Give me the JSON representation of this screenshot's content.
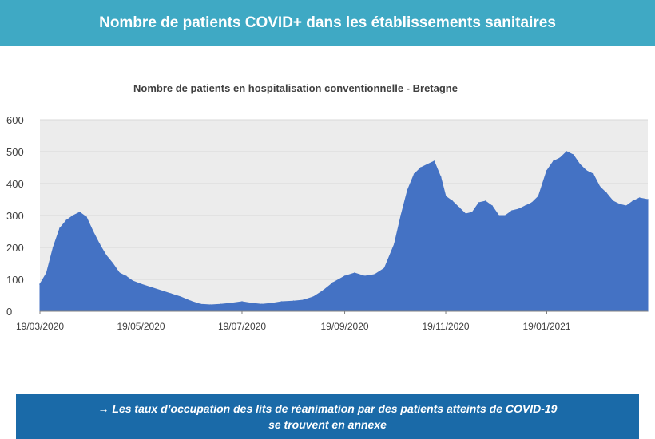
{
  "header": {
    "title": "Nombre de patients COVID+ dans les établissements sanitaires"
  },
  "footer": {
    "line1": "→ Les taux d’occupation des lits de réanimation par des patients atteints de COVID-19",
    "line2": "se trouvent en annexe"
  },
  "colors": {
    "banner": "#3fa9c4",
    "footer": "#1a6aa8",
    "area": "#4472c4",
    "plot_bg": "#ececec",
    "grid": "#d9d9d9"
  },
  "chart_data": {
    "type": "area",
    "title": "Nombre de patients en hospitalisation conventionnelle - Bretagne",
    "xlabel": "",
    "ylabel": "",
    "ylim": [
      0,
      600
    ],
    "yticks": [
      "0",
      "100",
      "200",
      "300",
      "400",
      "500",
      "600"
    ],
    "xticks": [
      "19/03/2020",
      "19/05/2020",
      "19/07/2020",
      "19/09/2020",
      "19/11/2020",
      "19/01/2021"
    ],
    "grid": true,
    "legend": "none",
    "series": [
      {
        "x": [
          "19/03/2020",
          "23/03/2020",
          "27/03/2020",
          "31/03/2020",
          "04/04/2020",
          "08/04/2020",
          "12/04/2020",
          "16/04/2020",
          "20/04/2020",
          "24/04/2020",
          "28/04/2020",
          "02/05/2020",
          "06/05/2020",
          "10/05/2020",
          "14/05/2020",
          "19/05/2020",
          "25/05/2020",
          "31/05/2020",
          "06/06/2020",
          "12/06/2020",
          "18/06/2020",
          "24/06/2020",
          "30/06/2020",
          "06/07/2020",
          "12/07/2020",
          "19/07/2020",
          "25/07/2020",
          "31/07/2020",
          "06/08/2020",
          "12/08/2020",
          "19/08/2020",
          "25/08/2020",
          "31/08/2020",
          "06/09/2020",
          "12/09/2020",
          "19/09/2020",
          "25/09/2020",
          "01/10/2020",
          "07/10/2020",
          "13/10/2020",
          "19/10/2020",
          "23/10/2020",
          "27/10/2020",
          "31/10/2020",
          "04/11/2020",
          "08/11/2020",
          "12/11/2020",
          "16/11/2020",
          "19/11/2020",
          "23/11/2020",
          "27/11/2020",
          "01/12/2020",
          "05/12/2020",
          "09/12/2020",
          "13/12/2020",
          "17/12/2020",
          "21/12/2020",
          "25/12/2020",
          "29/12/2020",
          "02/01/2021",
          "06/01/2021",
          "10/01/2021",
          "14/01/2021",
          "19/01/2021",
          "23/01/2021",
          "27/01/2021",
          "31/01/2021",
          "04/02/2021",
          "08/02/2021",
          "12/02/2021",
          "16/02/2021",
          "20/02/2021",
          "24/02/2021",
          "28/02/2021",
          "04/03/2021",
          "08/03/2021",
          "12/03/2021",
          "16/03/2021",
          "21/03/2021"
        ],
        "values": [
          85,
          120,
          200,
          260,
          285,
          300,
          310,
          295,
          250,
          210,
          175,
          150,
          120,
          110,
          95,
          85,
          75,
          65,
          55,
          45,
          32,
          22,
          20,
          22,
          25,
          30,
          25,
          22,
          25,
          30,
          32,
          35,
          45,
          65,
          90,
          110,
          120,
          110,
          115,
          135,
          210,
          300,
          380,
          430,
          450,
          460,
          470,
          420,
          360,
          345,
          325,
          305,
          310,
          340,
          345,
          330,
          300,
          300,
          315,
          320,
          330,
          340,
          360,
          440,
          470,
          480,
          500,
          490,
          460,
          440,
          430,
          390,
          370,
          345,
          335,
          330,
          345,
          355,
          350
        ]
      }
    ]
  }
}
